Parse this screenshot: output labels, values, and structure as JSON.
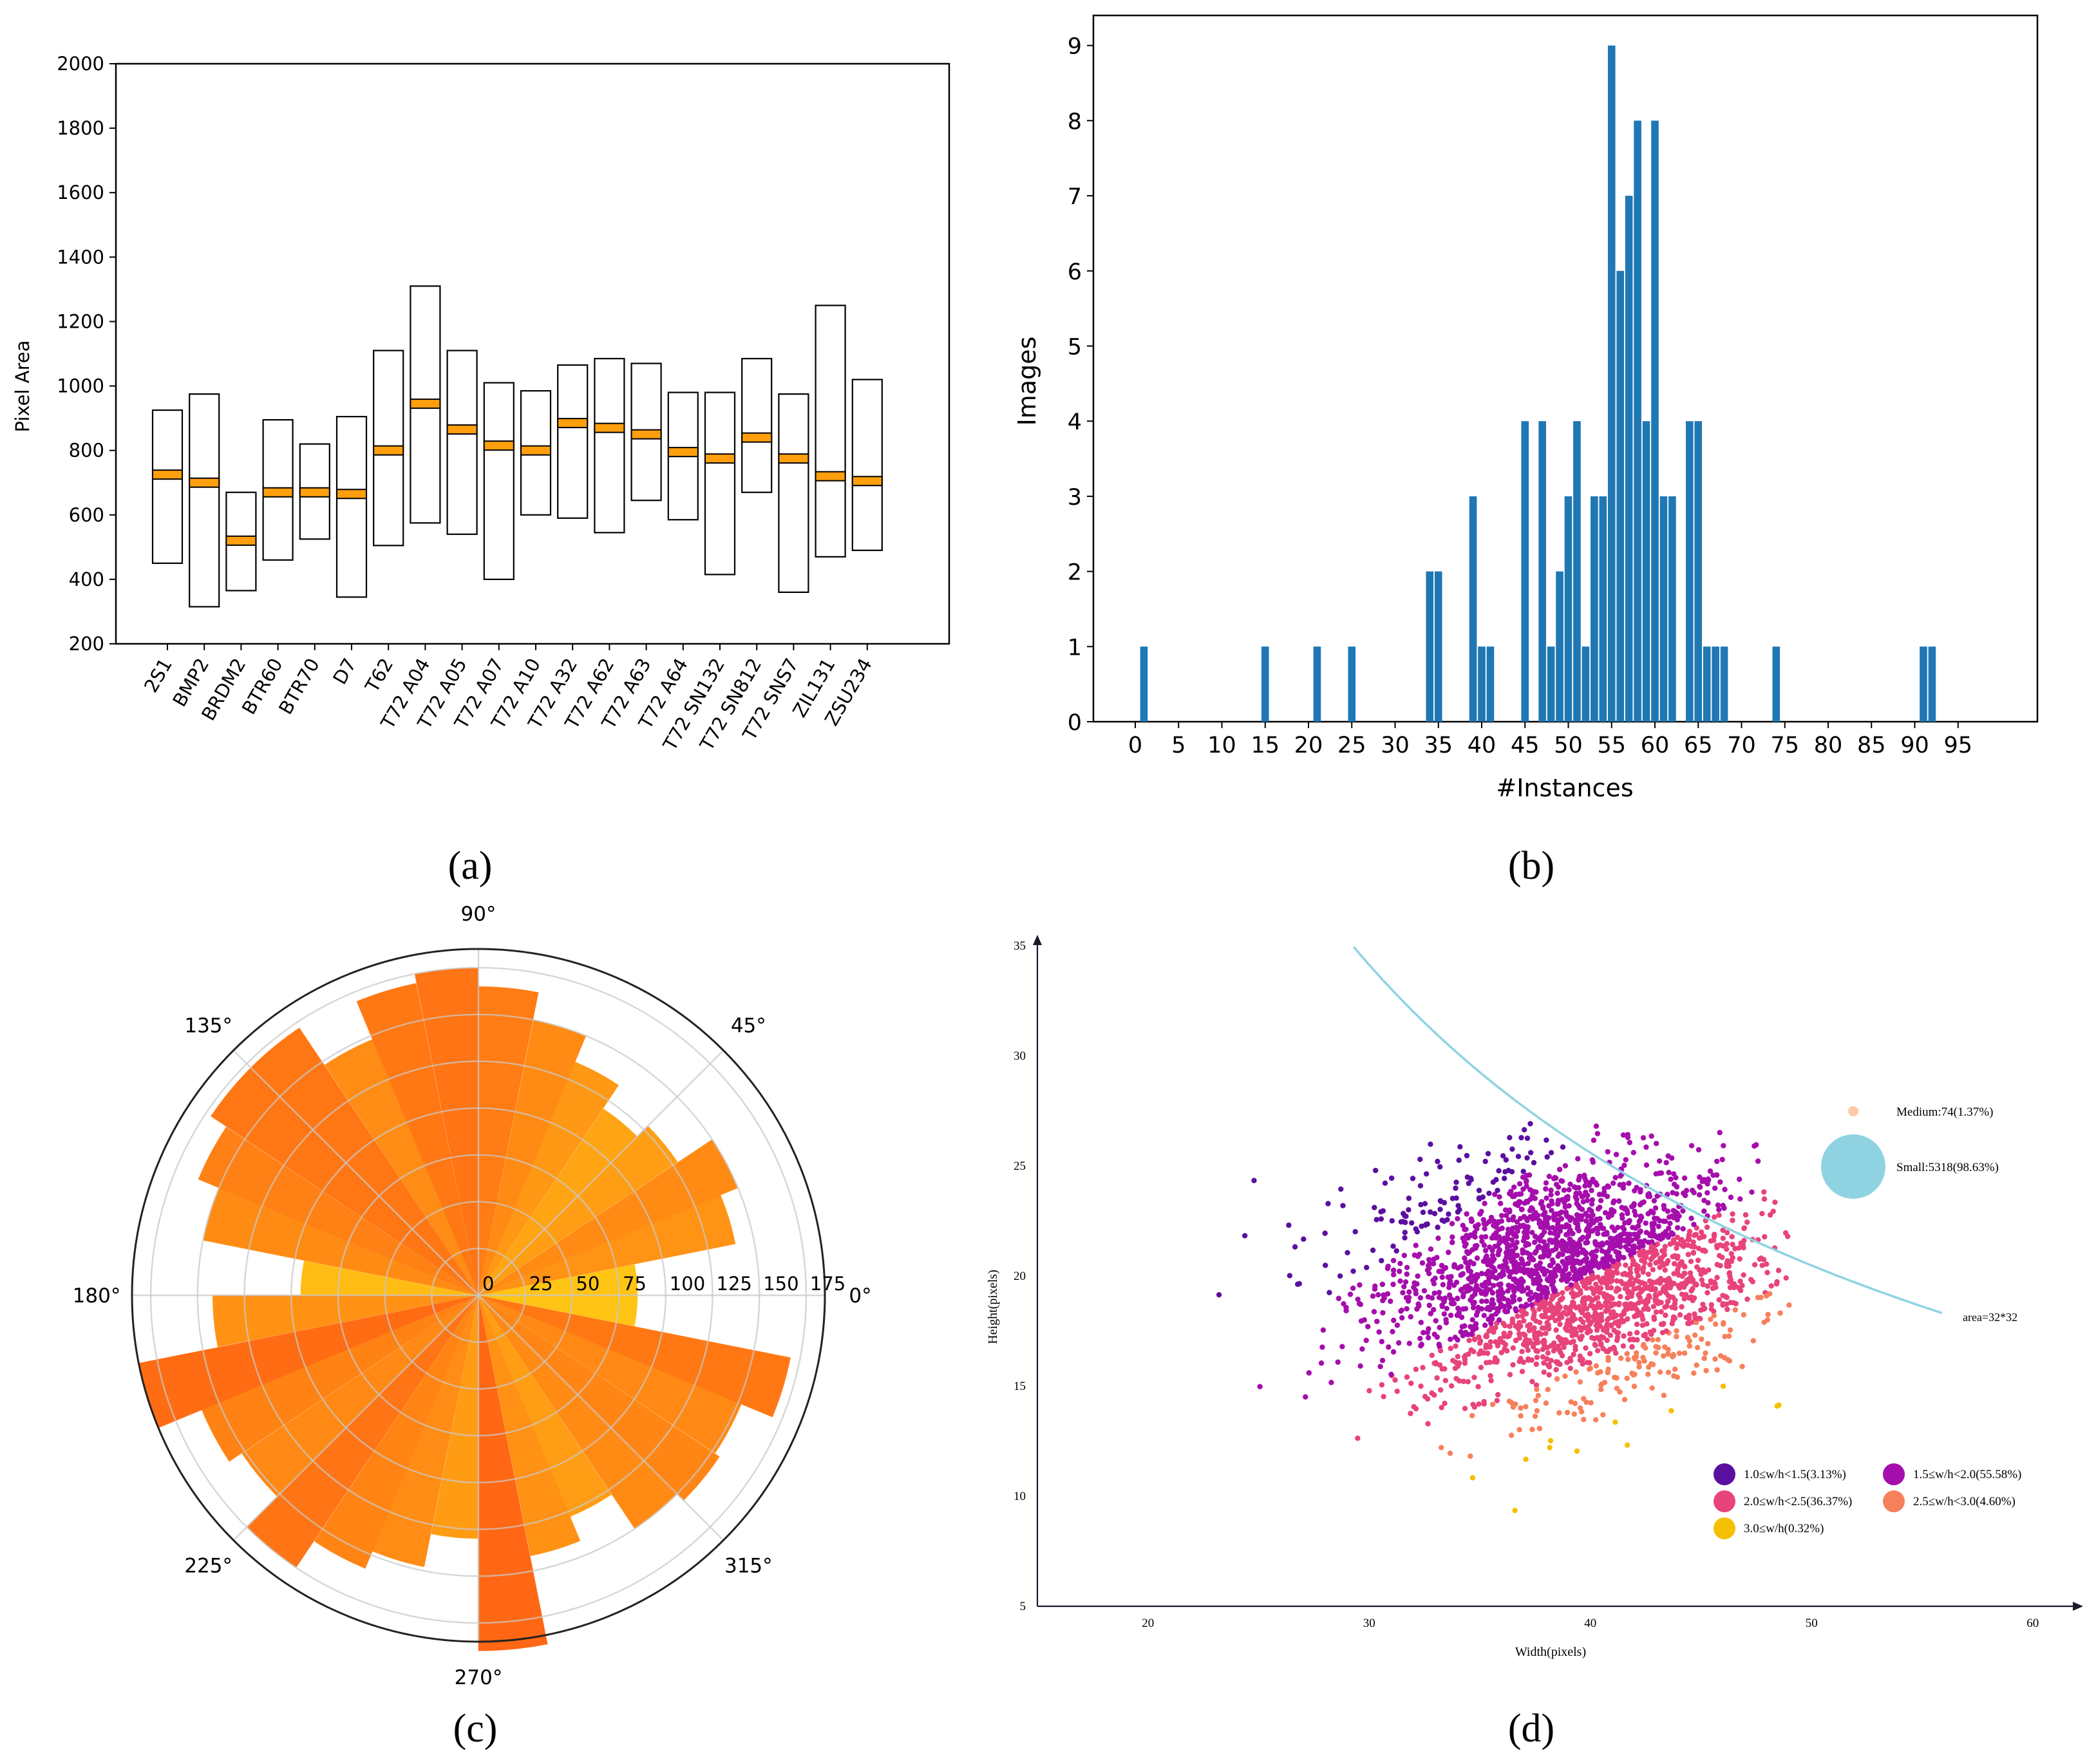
{
  "chart_data": [
    {
      "panel": "(a)",
      "type": "box",
      "ylabel": "Pixel Area",
      "ylim": [
        200,
        2000
      ],
      "yticks": [
        200,
        400,
        600,
        800,
        1000,
        1200,
        1400,
        1600,
        1800,
        2000
      ],
      "categories": [
        "2S1",
        "BMP2",
        "BRDM2",
        "BTR60",
        "BTR70",
        "D7",
        "T62",
        "T72 A04",
        "T72 A05",
        "T72 A07",
        "T72 A10",
        "T72 A32",
        "T72 A62",
        "T72 A63",
        "T72 A64",
        "T72 SN132",
        "T72 SN812",
        "T72 SNS7",
        "ZIL131",
        "ZSU234"
      ],
      "boxes": [
        {
          "low": 450,
          "high": 925,
          "median": 725
        },
        {
          "low": 315,
          "high": 975,
          "median": 700
        },
        {
          "low": 365,
          "high": 670,
          "median": 520
        },
        {
          "low": 460,
          "high": 895,
          "median": 670
        },
        {
          "low": 525,
          "high": 820,
          "median": 670
        },
        {
          "low": 345,
          "high": 905,
          "median": 665
        },
        {
          "low": 505,
          "high": 1110,
          "median": 800
        },
        {
          "low": 575,
          "high": 1310,
          "median": 945
        },
        {
          "low": 540,
          "high": 1110,
          "median": 865
        },
        {
          "low": 400,
          "high": 1010,
          "median": 815
        },
        {
          "low": 600,
          "high": 985,
          "median": 800
        },
        {
          "low": 590,
          "high": 1065,
          "median": 885
        },
        {
          "low": 545,
          "high": 1085,
          "median": 870
        },
        {
          "low": 645,
          "high": 1070,
          "median": 850
        },
        {
          "low": 585,
          "high": 980,
          "median": 795
        },
        {
          "low": 415,
          "high": 980,
          "median": 775
        },
        {
          "low": 670,
          "high": 1085,
          "median": 840
        },
        {
          "low": 360,
          "high": 975,
          "median": 775
        },
        {
          "low": 470,
          "high": 1250,
          "median": 720
        },
        {
          "low": 490,
          "high": 1020,
          "median": 705
        }
      ],
      "box_color": "#ffffff",
      "median_color": "#ff9f0e"
    },
    {
      "panel": "(b)",
      "type": "bar",
      "xlabel": "#Instances",
      "ylabel": "Images",
      "xlim": [
        -3,
        105
      ],
      "ylim": [
        0,
        9.4
      ],
      "xticks": [
        0,
        5,
        10,
        15,
        20,
        25,
        30,
        35,
        40,
        45,
        50,
        55,
        60,
        65,
        70,
        75,
        80,
        85,
        90,
        95
      ],
      "yticks": [
        0,
        1,
        2,
        3,
        4,
        5,
        6,
        7,
        8,
        9
      ],
      "x": [
        1,
        15,
        21,
        25,
        34,
        35,
        39,
        40,
        41,
        45,
        47,
        48,
        49,
        50,
        51,
        52,
        53,
        54,
        55,
        56,
        57,
        58,
        59,
        60,
        61,
        62,
        64,
        65,
        66,
        67,
        68,
        74,
        91,
        92
      ],
      "values": [
        1,
        1,
        1,
        1,
        2,
        2,
        3,
        1,
        1,
        4,
        4,
        1,
        2,
        3,
        4,
        1,
        3,
        3,
        9,
        6,
        7,
        8,
        4,
        8,
        3,
        3,
        4,
        4,
        1,
        1,
        1,
        1,
        1,
        1
      ],
      "bar_color": "#1f77b4"
    },
    {
      "panel": "(c)",
      "type": "polar_bar",
      "rlim": [
        0,
        185
      ],
      "rticks": [
        0,
        25,
        50,
        75,
        100,
        125,
        150,
        175
      ],
      "angle_labels": [
        "0°",
        "45°",
        "90°",
        "135°",
        "180°",
        "225°",
        "270°",
        "315°"
      ],
      "sector_width_deg": 11.25,
      "centers_deg": [
        5.6,
        16.9,
        28.1,
        39.4,
        50.6,
        61.9,
        73.1,
        84.4,
        95.6,
        106.9,
        118.1,
        129.4,
        140.6,
        151.9,
        163.1,
        174.4,
        185.6,
        196.9,
        208.1,
        219.4,
        230.6,
        241.9,
        253.1,
        264.4,
        275.6,
        286.9,
        298.1,
        309.4,
        320.6,
        331.9,
        343.1,
        354.4
      ],
      "values": [
        85,
        140,
        150,
        128,
        120,
        135,
        150,
        165,
        175,
        170,
        148,
        172,
        172,
        162,
        150,
        95,
        142,
        185,
        160,
        152,
        175,
        158,
        148,
        130,
        190,
        142,
        128,
        150,
        155,
        152,
        170,
        85
      ],
      "color_scale": [
        "#ffc400",
        "#ff5a00"
      ]
    },
    {
      "panel": "(d)",
      "type": "scatter",
      "xlabel": "Width(pixels)",
      "ylabel": "Height(pixels)",
      "xlim": [
        15,
        62
      ],
      "ylim": [
        5,
        36
      ],
      "xticks": [
        20,
        30,
        40,
        50,
        60
      ],
      "yticks": [
        5,
        10,
        15,
        20,
        25,
        30,
        35
      ],
      "curve_label": "area=32*32",
      "curve_color": "#8fd3e3",
      "size_legend": [
        {
          "label": "Medium:74(1.37%)",
          "color": "#ffc9a8"
        },
        {
          "label": "Small:5318(98.63%)",
          "color": "#8fd3e3"
        }
      ],
      "ratio_legend": [
        {
          "label": "1.0≤w/h<1.5(3.13%)",
          "color": "#5b0fa0"
        },
        {
          "label": "1.5≤w/h<2.0(55.58%)",
          "color": "#a50eac"
        },
        {
          "label": "2.0≤w/h<2.5(36.37%)",
          "color": "#e8437b"
        },
        {
          "label": "2.5≤w/h<3.0(4.60%)",
          "color": "#f7805c"
        },
        {
          "label": "3.0≤w/h(0.32%)",
          "color": "#f5c000"
        }
      ]
    }
  ],
  "panel_labels": {
    "a": "(a)",
    "b": "(b)",
    "c": "(c)",
    "d": "(d)"
  }
}
